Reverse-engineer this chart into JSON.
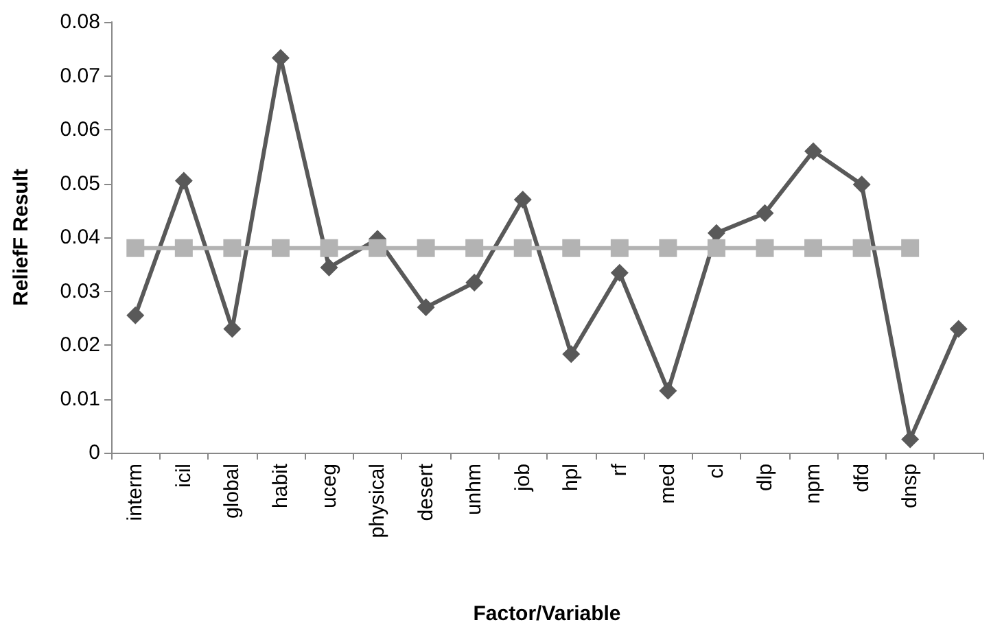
{
  "chart_data": {
    "type": "line",
    "xlabel": "Factor/Variable",
    "ylabel": "ReliefF Result",
    "categories": [
      "interm",
      "icil",
      "global",
      "habit",
      "uceg",
      "physical",
      "desert",
      "unhm",
      "job",
      "hpl",
      "rf",
      "med",
      "cl",
      "dlp",
      "npm",
      "dfd",
      "dnsp",
      null
    ],
    "series": [
      {
        "color": "#595959",
        "marker": "diamond",
        "values": [
          0.0255,
          0.0505,
          0.023,
          0.0733,
          0.0344,
          0.0397,
          0.027,
          0.0316,
          0.047,
          0.0183,
          0.0334,
          0.0115,
          0.0408,
          0.0445,
          0.056,
          0.0498,
          0.0025,
          0.023
        ]
      },
      {
        "color": "#b3b3b3",
        "marker": "square",
        "values": [
          0.038,
          0.038,
          0.038,
          0.038,
          0.038,
          0.038,
          0.038,
          0.038,
          0.038,
          0.038,
          0.038,
          0.038,
          0.038,
          0.038,
          0.038,
          0.038,
          0.038,
          null
        ]
      }
    ],
    "ylim": [
      0,
      0.08
    ],
    "yticks": [
      0,
      0.01,
      0.02,
      0.03,
      0.04,
      0.05,
      0.06,
      0.07,
      0.08
    ],
    "grid": false
  }
}
